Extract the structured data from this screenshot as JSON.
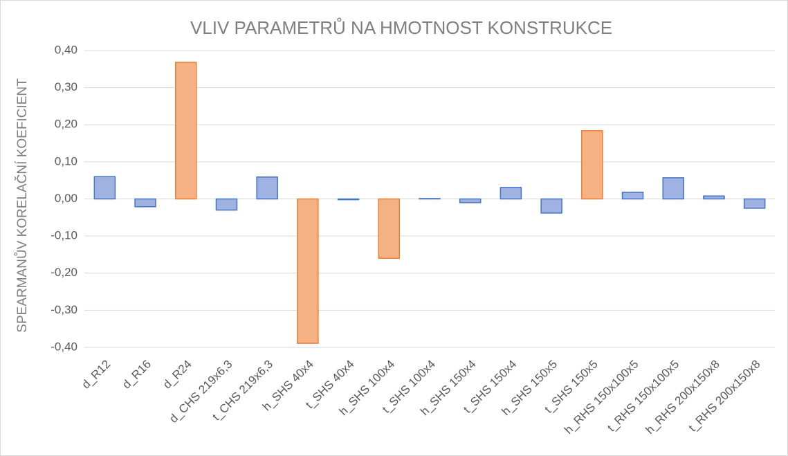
{
  "chart_data": {
    "type": "bar",
    "title": "VLIV PARAMETRŮ NA HMOTNOST KONSTRUKCE",
    "y_label": "SPEARMANŮV KORELAČNÍ KOEFICIENT",
    "categories": [
      "d_R12",
      "d_R16",
      "d_R24",
      "d_CHS 219x6,3",
      "t_CHS 219x6,3",
      "h_SHS 40x4",
      "t_SHS 40x4",
      "h_SHS 100x4",
      "t_SHS 100x4",
      "h_SHS 150x4",
      "t_SHS 150x4",
      "h_SHS 150x5",
      "t_SHS 150x5",
      "h_RHS 150x100x5",
      "t_RHS 150x100x5",
      "h_RHS 200x150x8",
      "t_RHS 200x150x8"
    ],
    "values": [
      0.06,
      -0.021,
      0.368,
      -0.03,
      0.059,
      -0.389,
      -0.002,
      -0.16,
      0.001,
      -0.01,
      0.031,
      -0.038,
      0.184,
      0.018,
      0.057,
      0.008,
      -0.025
    ],
    "colors": [
      "#9fb2e2",
      "#9fb2e2",
      "#f4b183",
      "#9fb2e2",
      "#9fb2e2",
      "#f4b183",
      "#9fb2e2",
      "#f4b183",
      "#9fb2e2",
      "#9fb2e2",
      "#9fb2e2",
      "#9fb2e2",
      "#f4b183",
      "#9fb2e2",
      "#9fb2e2",
      "#9fb2e2",
      "#9fb2e2"
    ],
    "edge_colors": [
      "#4472c4",
      "#4472c4",
      "#ed7d31",
      "#4472c4",
      "#4472c4",
      "#ed7d31",
      "#4472c4",
      "#ed7d31",
      "#4472c4",
      "#4472c4",
      "#4472c4",
      "#4472c4",
      "#ed7d31",
      "#4472c4",
      "#4472c4",
      "#4472c4",
      "#4472c4"
    ],
    "ylim": [
      -0.4,
      0.4
    ],
    "yticks": [
      {
        "value": -0.4,
        "label": "-0,40"
      },
      {
        "value": -0.3,
        "label": "-0,30"
      },
      {
        "value": -0.2,
        "label": "-0,20"
      },
      {
        "value": -0.1,
        "label": "-0,10"
      },
      {
        "value": 0,
        "label": "0,00"
      },
      {
        "value": 0.1,
        "label": "0,10"
      },
      {
        "value": 0.2,
        "label": "0,20"
      },
      {
        "value": 0.3,
        "label": "0,30"
      },
      {
        "value": 0.4,
        "label": "0,40"
      }
    ],
    "grid": true
  }
}
